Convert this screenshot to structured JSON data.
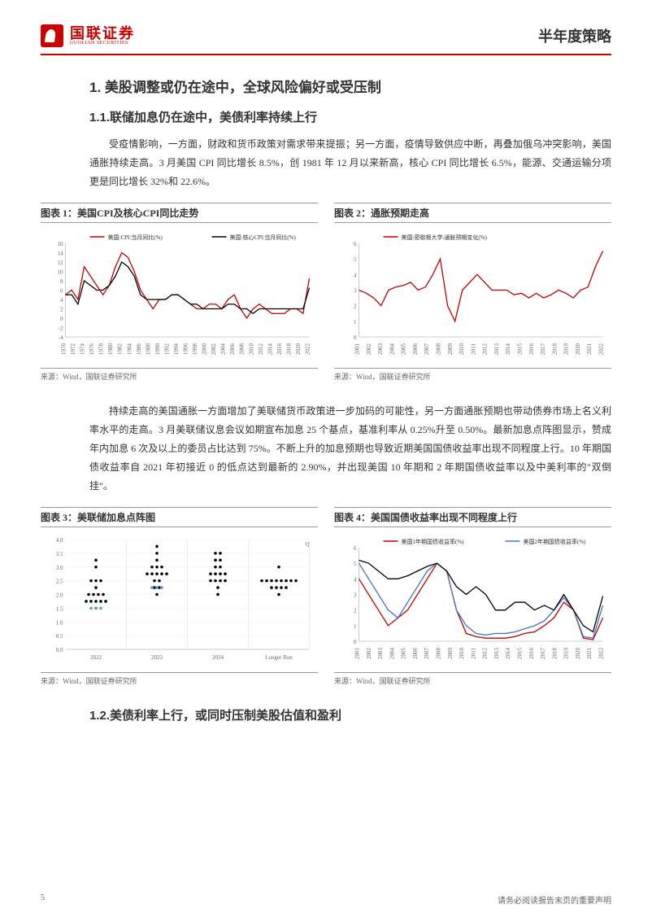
{
  "header": {
    "logo_cn": "国联证券",
    "logo_en": "GUOLIAN SECURITIES",
    "doc_type": "半年度策略"
  },
  "section1": {
    "title": "1. 美股调整或仍在途中，全球风险偏好或受压制",
    "sub1_title": "1.1.联储加息仍在途中，美债利率持续上行",
    "para1": "受疫情影响，一方面，财政和货币政策对需求带来提振；另一方面，疫情导致供应中断，再叠加俄乌冲突影响，美国通胀持续走高。3 月美国 CPI 同比增长 8.5%，创 1981 年 12 月以来新高，核心 CPI 同比增长 6.5%，能源、交通运输分项更是同比增长 32%和 22.6%。",
    "para2": "持续走高的美国通胀一方面增加了美联储货币政策进一步加码的可能性，另一方面通胀预期也带动债券市场上名义利率水平的走高。3 月美联储议息会议如期宣布加息 25 个基点，基准利率从 0.25%升至 0.50%。最新加息点阵图显示，赞成年内加息 6 次及以上的委员占比达到 75%。不断上升的加息预期也导致近期美国国债收益率出现不同程度上行。10 年期国债收益率自 2021 年初接近 0 的低点达到最新的 2.90%，并出现美国 10 年期和 2 年期国债收益率以及中美利率的\"双倒挂\"。",
    "sub2_title": "1.2.美债利率上行，或同时压制美股估值和盈利"
  },
  "chart1": {
    "title": "图表 1：美国CPI及核心CPI同比走势",
    "source": "来源：Wind，国联证券研究所",
    "type": "line",
    "legend": [
      "美国:CPI:当月同比(%)",
      "美国:核心CPI:当月同比(%)"
    ],
    "colors": [
      "#c00000",
      "#000000"
    ],
    "xlabels": [
      "1970",
      "1972",
      "1974",
      "1976",
      "1978",
      "1980",
      "1982",
      "1984",
      "1986",
      "1988",
      "1990",
      "1992",
      "1994",
      "1996",
      "1998",
      "2000",
      "2002",
      "2004",
      "2006",
      "2008",
      "2010",
      "2012",
      "2014",
      "2016",
      "2018",
      "2020",
      "2022"
    ],
    "ylim": [
      -4,
      16
    ],
    "ytick_step": 2,
    "series1": [
      5,
      6,
      4,
      11,
      9,
      7,
      5,
      7,
      11,
      14,
      13,
      10,
      6,
      4,
      2,
      4,
      4,
      5,
      5,
      4,
      3,
      2,
      2,
      3,
      3,
      2,
      4,
      5,
      2,
      0,
      2,
      3,
      2,
      1,
      1,
      1,
      2,
      2,
      1,
      8.5
    ],
    "series2": [
      5,
      5,
      3,
      8,
      7,
      6,
      6,
      7,
      9,
      12,
      11,
      9,
      5,
      4,
      4,
      4,
      4,
      5,
      5,
      4,
      3,
      3,
      2,
      2,
      2,
      2,
      3,
      3,
      2,
      2,
      1,
      2,
      2,
      2,
      2,
      2,
      2,
      2,
      2,
      6.5
    ]
  },
  "chart2": {
    "title": "图表 2：通胀预期走高",
    "source": "来源：Wind，国联证券研究所",
    "type": "line",
    "legend": [
      "美国:密歇根大学:通胀预期变化(%)"
    ],
    "colors": [
      "#c00000"
    ],
    "xlabels": [
      "2001",
      "2002",
      "2003",
      "2004",
      "2005",
      "2006",
      "2007",
      "2008",
      "2009",
      "2010",
      "2011",
      "2012",
      "2013",
      "2014",
      "2015",
      "2016",
      "2017",
      "2018",
      "2019",
      "2020",
      "2021",
      "2022"
    ],
    "ylim": [
      0,
      6
    ],
    "ytick_step": 1,
    "series1": [
      3,
      2.8,
      2.5,
      2,
      3,
      3.2,
      3.3,
      3.5,
      3,
      3.2,
      4,
      5,
      2,
      1,
      3,
      3.5,
      4,
      3.5,
      3,
      3,
      3,
      2.7,
      2.8,
      2.5,
      2.8,
      2.5,
      2.7,
      3,
      2.8,
      2.5,
      3,
      3.2,
      4.5,
      5.5
    ]
  },
  "chart3": {
    "title": "图表 3：美联储加息点阵图",
    "source": "来源：Wind，国联证券研究所",
    "type": "scatter",
    "xlabels": [
      "2022",
      "2023",
      "2024",
      "Longer Run"
    ],
    "ylim": [
      0,
      4.0
    ],
    "ytick_step": 0.5,
    "dot_color": "#000",
    "highlight_color": "#5b9bd5",
    "points_2022": [
      1.5,
      1.75,
      1.75,
      1.75,
      1.75,
      1.75,
      2.0,
      2.0,
      2.0,
      2.0,
      2.25,
      2.5,
      2.5,
      2.5,
      3.0,
      3.25
    ],
    "highlight_2022": [
      1.5,
      1.5,
      1.5
    ],
    "points_2023": [
      2.0,
      2.25,
      2.25,
      2.5,
      2.5,
      2.75,
      2.75,
      2.75,
      2.75,
      2.75,
      3.0,
      3.0,
      3.0,
      3.25,
      3.5,
      3.75
    ],
    "highlight_2023": [
      2.25,
      2.25,
      2.25
    ],
    "points_2024": [
      2.0,
      2.25,
      2.5,
      2.5,
      2.5,
      2.5,
      2.75,
      2.75,
      2.75,
      2.75,
      3.0,
      3.0,
      3.25,
      3.25,
      3.5,
      3.5
    ],
    "points_long": [
      2.0,
      2.25,
      2.25,
      2.25,
      2.25,
      2.5,
      2.5,
      2.5,
      2.5,
      2.5,
      2.5,
      2.5,
      2.5,
      3.0
    ]
  },
  "chart4": {
    "title": "图表 4：美国国债收益率出现不同程度上行",
    "source": "来源：Wind，国联证券研究所",
    "type": "line",
    "legend": [
      "美国1年期国债收益率(%)",
      "美国2年期国债收益率(%)",
      "美国10年期国债收益率(%)"
    ],
    "colors": [
      "#c00000",
      "#4472c4",
      "#000000"
    ],
    "xlabels": [
      "2001",
      "2002",
      "2003",
      "2004",
      "2005",
      "2006",
      "2007",
      "2008",
      "2009",
      "2010",
      "2011",
      "2012",
      "2013",
      "2014",
      "2015",
      "2016",
      "2017",
      "2018",
      "2019",
      "2020",
      "2021",
      "2022"
    ],
    "ylim": [
      0,
      6
    ],
    "ytick_step": 1,
    "series1": [
      4,
      3,
      2,
      1,
      1.5,
      2,
      3,
      4,
      5,
      4.5,
      2,
      0.5,
      0.3,
      0.2,
      0.2,
      0.2,
      0.3,
      0.5,
      0.6,
      1,
      1.5,
      2.5,
      2,
      0.2,
      0.1,
      1.5
    ],
    "series2": [
      5,
      4,
      3,
      2,
      1.5,
      2.5,
      3.5,
      4.5,
      5,
      4.5,
      2,
      1,
      0.5,
      0.4,
      0.5,
      0.5,
      0.6,
      0.8,
      1,
      1.3,
      2,
      2.8,
      2,
      0.3,
      0.2,
      2.3
    ],
    "series3": [
      5.2,
      5,
      4.5,
      4,
      4,
      4.2,
      4.5,
      4.8,
      5,
      4.5,
      3.5,
      3,
      3.5,
      3,
      2,
      2,
      2.5,
      2.5,
      2,
      2.3,
      2,
      3,
      2,
      1,
      0.6,
      2.9
    ]
  },
  "footer": {
    "page_num": "5",
    "disclaimer": "请务必阅读报告末页的重要声明"
  }
}
